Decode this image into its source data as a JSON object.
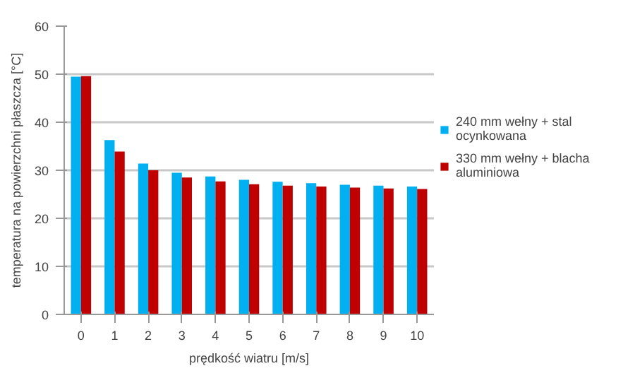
{
  "chart_data": {
    "type": "bar",
    "xlabel": "prędkość wiatru [m/s]",
    "ylabel": "temperatura na powierzchni płaszcza [°C]",
    "categories": [
      "0",
      "1",
      "2",
      "3",
      "4",
      "5",
      "6",
      "7",
      "8",
      "9",
      "10"
    ],
    "series": [
      {
        "name": "240 mm wełny + stal ocynkowana",
        "color": "#00b0f0",
        "values": [
          49.5,
          36.3,
          31.4,
          29.5,
          28.7,
          28.0,
          27.6,
          27.3,
          27.0,
          26.8,
          26.6
        ]
      },
      {
        "name": "330 mm wełny + blacha aluminiowa",
        "color": "#c00000",
        "values": [
          49.6,
          33.9,
          30.0,
          28.5,
          27.7,
          27.1,
          26.8,
          26.6,
          26.4,
          26.2,
          26.1
        ]
      }
    ],
    "ylim": [
      0,
      60
    ],
    "yticks": [
      0,
      10,
      20,
      30,
      40,
      50,
      60
    ],
    "grid": "y",
    "legend": "right"
  }
}
